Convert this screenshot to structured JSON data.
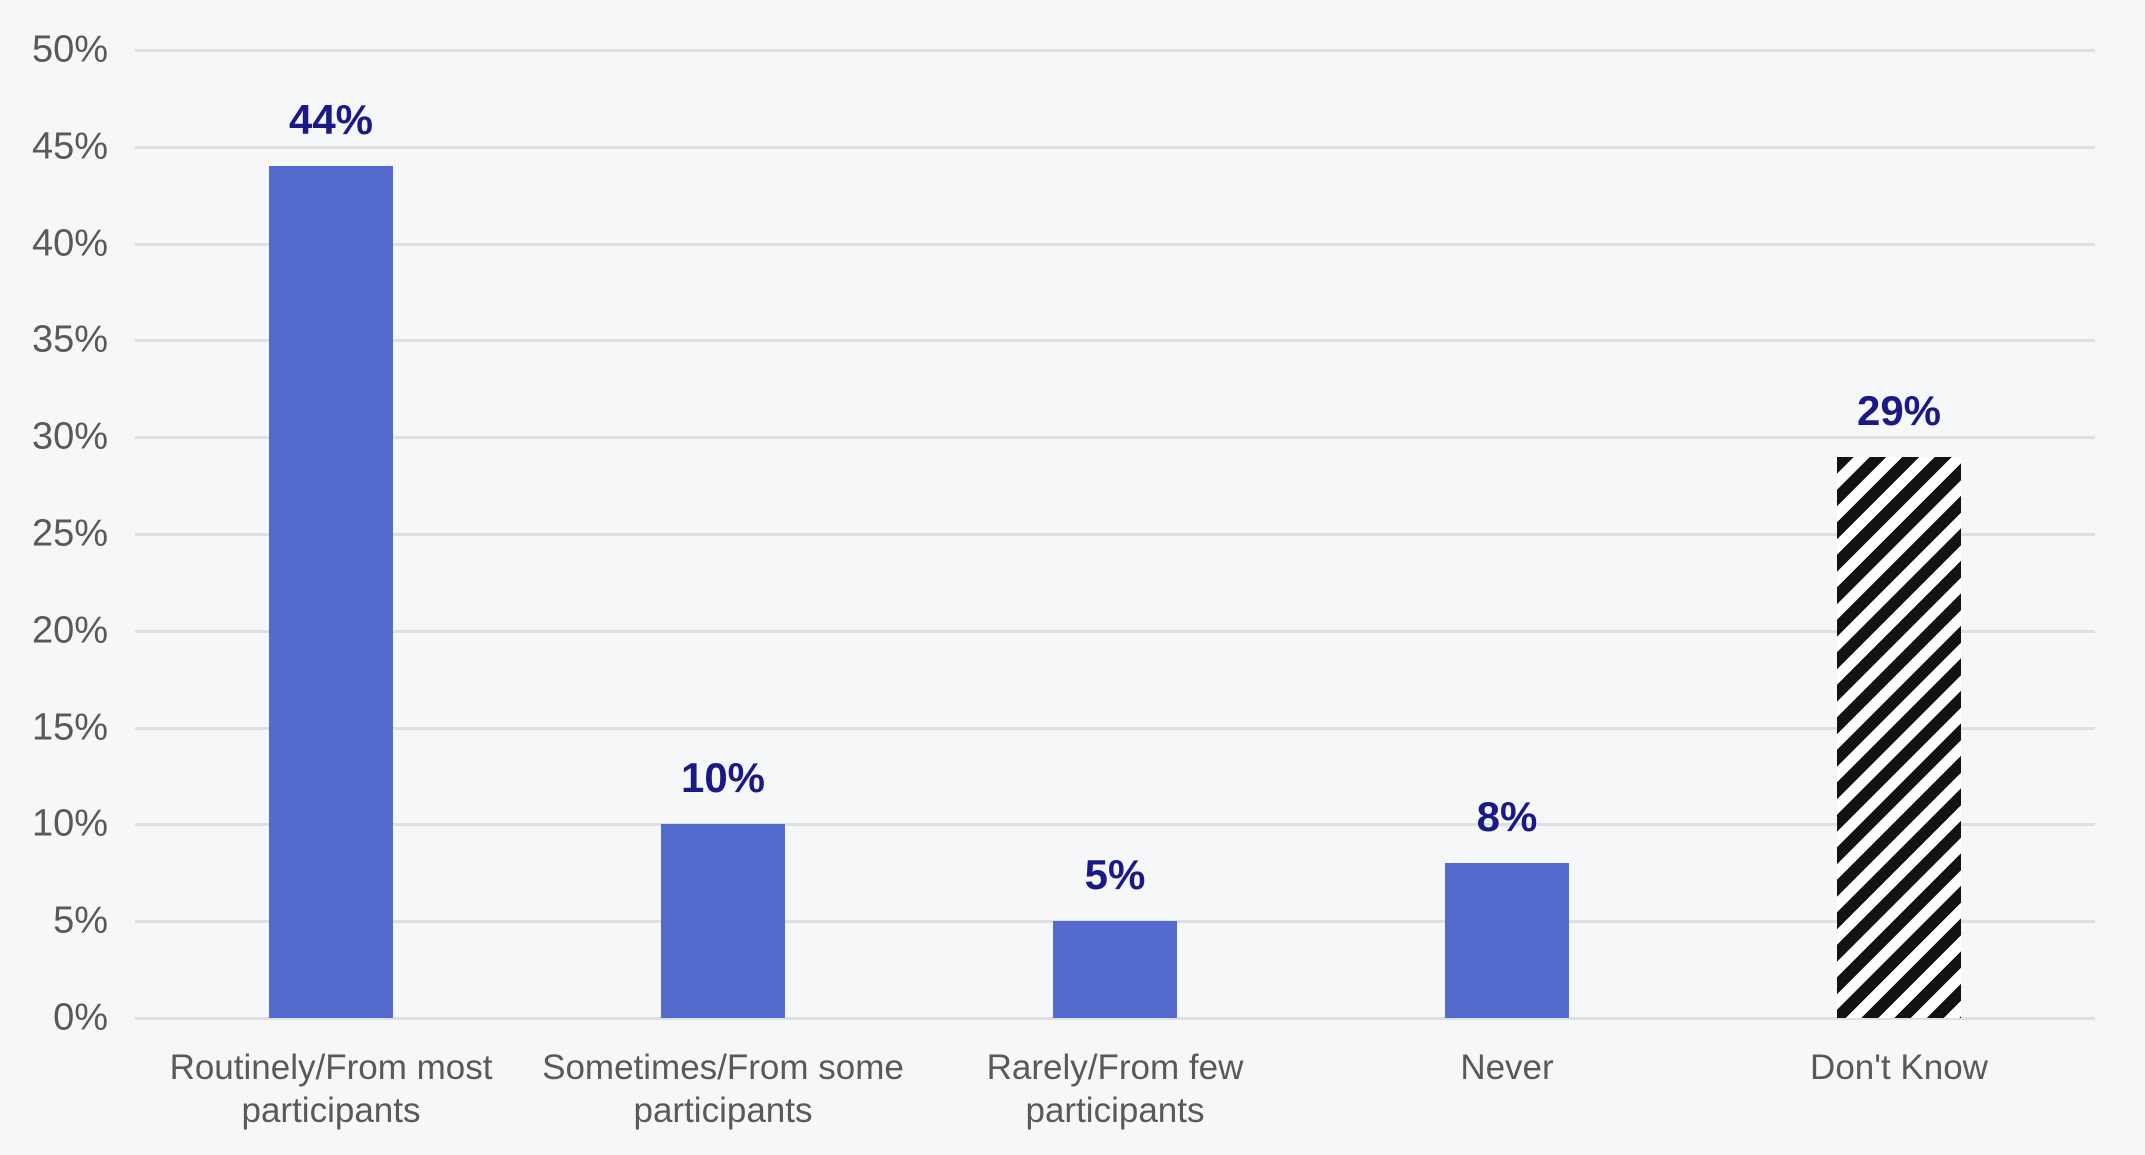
{
  "chart_data": {
    "type": "bar",
    "categories": [
      "Routinely/From most participants",
      "Sometimes/From some participants",
      "Rarely/From few participants",
      "Never",
      "Don't Know"
    ],
    "values": [
      44,
      10,
      5,
      8,
      29
    ],
    "data_labels": [
      "44%",
      "10%",
      "5%",
      "8%",
      "29%"
    ],
    "bar_styles": [
      "solid",
      "solid",
      "solid",
      "solid",
      "hatched"
    ],
    "title": "",
    "xlabel": "",
    "ylabel": "",
    "ylim": [
      0,
      50
    ],
    "ytick_step": 5,
    "ytick_labels": [
      "0%",
      "5%",
      "10%",
      "15%",
      "20%",
      "25%",
      "30%",
      "35%",
      "40%",
      "45%",
      "50%"
    ],
    "grid": true,
    "legend": false
  },
  "colors": {
    "background": "#F6F7F9",
    "bar_fill": "#526BCC",
    "hatch_stripe": "#121212",
    "hatch_background": "#FFFFFF",
    "data_label": "#1A1A86",
    "axis_text": "#58595B",
    "gridline": "#DEDFE1"
  }
}
